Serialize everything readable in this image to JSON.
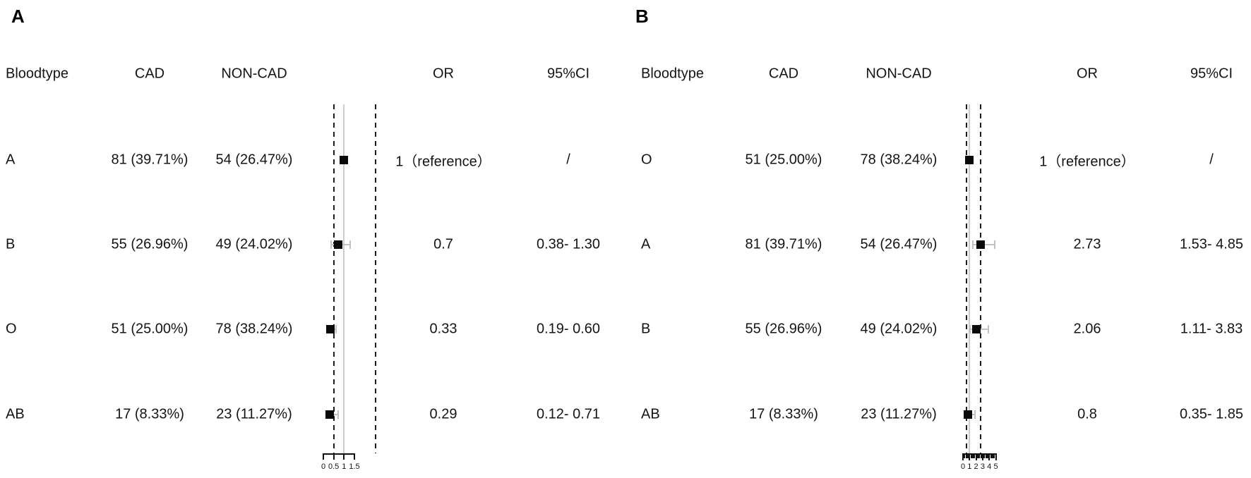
{
  "figure": {
    "panels": [
      {
        "label": "A",
        "columns": {
          "bloodtype": "Bloodtype",
          "cad": "CAD",
          "noncad": "NON-CAD",
          "or": "OR",
          "ci": "95%CI"
        },
        "rows": [
          {
            "bloodtype": "A",
            "cad": "81 (39.71%)",
            "noncad": "54 (26.47%)",
            "or_label": "1（reference）",
            "ci_label": "/",
            "or": 1.0,
            "ci_low": null,
            "ci_high": null,
            "is_reference": true
          },
          {
            "bloodtype": "B",
            "cad": "55 (26.96%)",
            "noncad": "49 (24.02%)",
            "or_label": "0.7",
            "ci_label": "0.38- 1.30",
            "or": 0.7,
            "ci_low": 0.38,
            "ci_high": 1.3,
            "is_reference": false
          },
          {
            "bloodtype": "O",
            "cad": "51 (25.00%)",
            "noncad": "78 (38.24%)",
            "or_label": "0.33",
            "ci_label": "0.19- 0.60",
            "or": 0.33,
            "ci_low": 0.19,
            "ci_high": 0.6,
            "is_reference": false
          },
          {
            "bloodtype": "AB",
            "cad": "17 (8.33%)",
            "noncad": "23 (11.27%)",
            "or_label": "0.29",
            "ci_label": "0.12- 0.71",
            "or": 0.29,
            "ci_low": 0.12,
            "ci_high": 0.71,
            "is_reference": false
          }
        ],
        "axis": {
          "min": 0,
          "max": 1.5,
          "ticks": [
            0,
            0.5,
            1,
            1.5
          ],
          "tick_labels": [
            "0",
            "0.5",
            "1",
            "1.5"
          ]
        }
      },
      {
        "label": "B",
        "columns": {
          "bloodtype": "Bloodtype",
          "cad": "CAD",
          "noncad": "NON-CAD",
          "or": "OR",
          "ci": "95%CI"
        },
        "rows": [
          {
            "bloodtype": "O",
            "cad": "51 (25.00%)",
            "noncad": "78 (38.24%)",
            "or_label": "1（reference）",
            "ci_label": "/",
            "or": 1.0,
            "ci_low": null,
            "ci_high": null,
            "is_reference": true
          },
          {
            "bloodtype": "A",
            "cad": "81 (39.71%)",
            "noncad": "54 (26.47%)",
            "or_label": "2.73",
            "ci_label": "1.53- 4.85",
            "or": 2.73,
            "ci_low": 1.53,
            "ci_high": 4.85,
            "is_reference": false
          },
          {
            "bloodtype": "B",
            "cad": "55 (26.96%)",
            "noncad": "49 (24.02%)",
            "or_label": "2.06",
            "ci_label": "1.11- 3.83",
            "or": 2.06,
            "ci_low": 1.11,
            "ci_high": 3.83,
            "is_reference": false
          },
          {
            "bloodtype": "AB",
            "cad": "17 (8.33%)",
            "noncad": "23 (11.27%)",
            "or_label": "0.8",
            "ci_label": "0.35- 1.85",
            "or": 0.8,
            "ci_low": 0.35,
            "ci_high": 1.85,
            "is_reference": false
          }
        ],
        "axis": {
          "min": 0,
          "max": 5,
          "ticks": [
            0,
            1,
            2,
            3,
            4,
            5
          ],
          "tick_labels": [
            "0",
            "1",
            "2",
            "3",
            "4",
            "5"
          ],
          "minor_step": 0.25
        }
      }
    ]
  },
  "colors": {
    "background": "#ffffff",
    "text": "#141414",
    "marker": "#0a0a0a",
    "whisker": "#c2c2c2",
    "reference_line": "#cccccc",
    "dashed_line": "#1c1c1c"
  },
  "chart_data": [
    {
      "type": "scatter",
      "subtype": "forest_plot",
      "panel": "A",
      "categories": [
        "A",
        "B",
        "O",
        "AB"
      ],
      "series": [
        {
          "name": "OR",
          "values": [
            1.0,
            0.7,
            0.33,
            0.29
          ]
        },
        {
          "name": "CI_low",
          "values": [
            null,
            0.38,
            0.19,
            0.12
          ]
        },
        {
          "name": "CI_high",
          "values": [
            null,
            1.3,
            0.6,
            0.71
          ]
        }
      ],
      "cad_counts": [
        "81 (39.71%)",
        "55 (26.96%)",
        "51 (25.00%)",
        "17 (8.33%)"
      ],
      "non_cad_counts": [
        "54 (26.47%)",
        "49 (24.02%)",
        "78 (38.24%)",
        "23 (11.27%)"
      ],
      "reference_category": "A",
      "xlim": [
        0,
        1.5
      ],
      "x_ticks": [
        0,
        0.5,
        1,
        1.5
      ],
      "guides": {
        "reference_line_at": 1.0,
        "dashed_lines": true
      },
      "legend": "none",
      "grid": false
    },
    {
      "type": "scatter",
      "subtype": "forest_plot",
      "panel": "B",
      "categories": [
        "O",
        "A",
        "B",
        "AB"
      ],
      "series": [
        {
          "name": "OR",
          "values": [
            1.0,
            2.73,
            2.06,
            0.8
          ]
        },
        {
          "name": "CI_low",
          "values": [
            null,
            1.53,
            1.11,
            0.35
          ]
        },
        {
          "name": "CI_high",
          "values": [
            null,
            4.85,
            3.83,
            1.85
          ]
        }
      ],
      "cad_counts": [
        "51 (25.00%)",
        "81 (39.71%)",
        "55 (26.96%)",
        "17 (8.33%)"
      ],
      "non_cad_counts": [
        "78 (38.24%)",
        "54 (26.47%)",
        "49 (24.02%)",
        "23 (11.27%)"
      ],
      "reference_category": "O",
      "xlim": [
        0,
        5
      ],
      "x_ticks": [
        0,
        1,
        2,
        3,
        4,
        5
      ],
      "guides": {
        "reference_line_at": 1.0,
        "dashed_lines": true
      },
      "legend": "none",
      "grid": false
    }
  ]
}
